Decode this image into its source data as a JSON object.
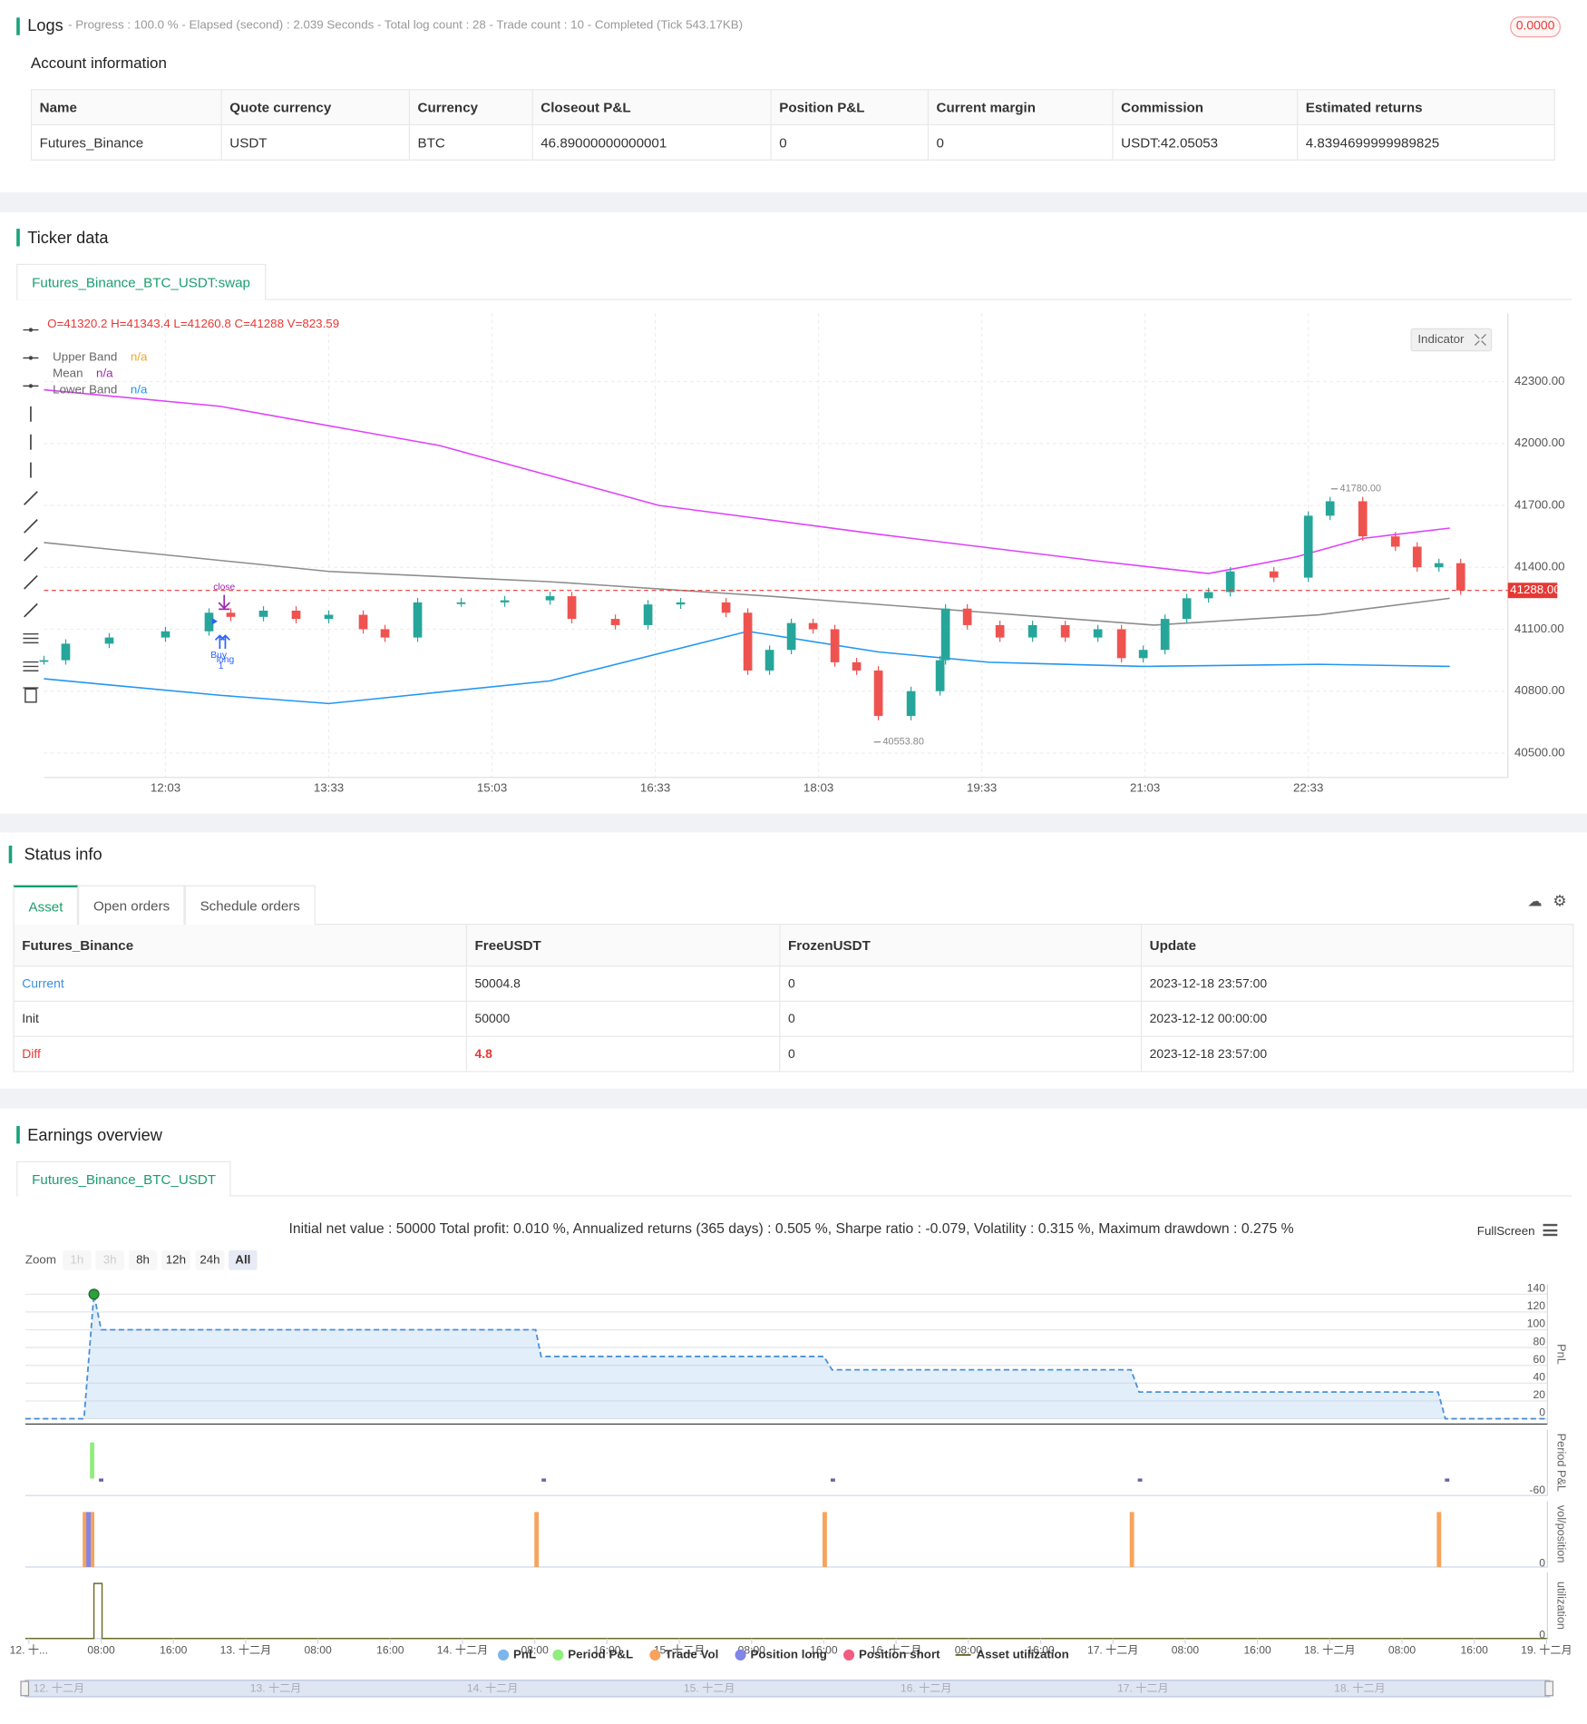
{
  "logs": {
    "title": "Logs",
    "progress": "- Progress : 100.0 % - Elapsed (second) : 2.039  Seconds - Total log count : 28 - Trade count : 10 - Completed (Tick 543.17KB)",
    "badge": "0.0000"
  },
  "account": {
    "title": "Account information",
    "columns": [
      "Name",
      "Quote currency",
      "Currency",
      "Closeout P&L",
      "Position P&L",
      "Current margin",
      "Commission",
      "Estimated returns"
    ],
    "rows": [
      [
        "Futures_Binance",
        "USDT",
        "BTC",
        "46.89000000000001",
        "0",
        "0",
        "USDT:42.05053",
        "4.8394699999989825"
      ]
    ]
  },
  "ticker": {
    "title": "Ticker data",
    "tab": "Futures_Binance_BTC_USDT:swap"
  },
  "status": {
    "title": "Status info",
    "tabs": [
      "Asset",
      "Open orders",
      "Schedule orders"
    ],
    "columns": [
      "Futures_Binance",
      "FreeUSDT",
      "FrozenUSDT",
      "Update"
    ],
    "rows": [
      [
        "Current",
        "50004.8",
        "0",
        "2023-12-18 23:57:00"
      ],
      [
        "Init",
        "50000",
        "0",
        "2023-12-12 00:00:00"
      ],
      [
        "Diff",
        "4.8",
        "0",
        "2023-12-18 23:57:00"
      ]
    ]
  },
  "earnings": {
    "title": "Earnings overview",
    "tab": "Futures_Binance_BTC_USDT",
    "fullscreen": "FullScreen",
    "zoom_label": "Zoom",
    "zoom_buttons": [
      "1h",
      "3h",
      "8h",
      "12h",
      "24h",
      "All"
    ]
  },
  "chart_data": [
    {
      "type": "candlestick",
      "ohlc": "O=41320.2 H=41343.4 L=41260.8 C=41288 V=823.59",
      "indicator_button": "Indicator",
      "up_color": "#26a69a",
      "down_color": "#ef5350",
      "x": [
        656,
        668,
        692,
        723,
        747,
        759,
        777,
        795,
        813,
        832,
        844,
        862,
        886,
        910,
        935,
        947,
        971,
        989,
        1007,
        1032,
        1044,
        1056,
        1068,
        1080,
        1092,
        1104,
        1116,
        1134,
        1150,
        1153,
        1165,
        1183,
        1201,
        1219,
        1237,
        1250,
        1262,
        1274,
        1286,
        1298,
        1310,
        1334,
        1353,
        1365,
        1383,
        1401,
        1413,
        1425,
        1437
      ],
      "close": [
        40950,
        41030,
        41060,
        41090,
        41180,
        41160,
        41190,
        41150,
        41170,
        41100,
        41060,
        41230,
        41230,
        41240,
        41260,
        41150,
        41120,
        41220,
        41230,
        41180,
        40900,
        41000,
        41130,
        41100,
        40940,
        40900,
        40680,
        40800,
        40950,
        41200,
        41120,
        41060,
        41120,
        41060,
        41100,
        40960,
        41000,
        41150,
        41250,
        41280,
        41380,
        41350,
        41650,
        41720,
        41550,
        41500,
        41400,
        41420,
        41288
      ],
      "series": [
        {
          "name": "Upper Band",
          "color": "#e040fb",
          "legend_value": "n/a",
          "value_color": "#f5a623",
          "x": [
            656,
            753,
            874,
            995,
            1116,
            1237,
            1298,
            1346,
            1383,
            1431
          ],
          "values": [
            42260,
            42180,
            41990,
            41700,
            41560,
            41430,
            41370,
            41450,
            41540,
            41590
          ]
        },
        {
          "name": "Mean",
          "color": "#8c8c8c",
          "legend_value": "n/a",
          "value_color": "#9c27b0",
          "x": [
            656,
            813,
            935,
            1056,
            1177,
            1268,
            1359,
            1431
          ],
          "values": [
            41520,
            41380,
            41330,
            41260,
            41180,
            41120,
            41170,
            41250
          ]
        },
        {
          "name": "Lower Band",
          "color": "#2196f3",
          "legend_value": "n/a",
          "value_color": "#2196f3",
          "x": [
            656,
            753,
            813,
            935,
            1044,
            1116,
            1177,
            1262,
            1359,
            1431
          ],
          "values": [
            40860,
            40780,
            40740,
            40850,
            41090,
            40990,
            40940,
            40920,
            40930,
            40920
          ]
        }
      ],
      "annotations": [
        "close",
        "Buy",
        "long",
        "1"
      ],
      "last_price": {
        "value": 41288,
        "label": "41288.00"
      },
      "high_marker": {
        "x": 1368,
        "value": 41780,
        "label": "41780.00"
      },
      "low_marker": {
        "x": 1116,
        "value": 40553.8,
        "label": "40553.80"
      },
      "xlim": [
        656,
        1463
      ],
      "xticks": [
        {
          "value": 723,
          "label": "12:03"
        },
        {
          "value": 813,
          "label": "13:33"
        },
        {
          "value": 903,
          "label": "15:03"
        },
        {
          "value": 993,
          "label": "16:33"
        },
        {
          "value": 1083,
          "label": "18:03"
        },
        {
          "value": 1173,
          "label": "19:33"
        },
        {
          "value": 1263,
          "label": "21:03"
        },
        {
          "value": 1353,
          "label": "22:33"
        }
      ],
      "ylim": [
        40382,
        42630
      ],
      "yticks": [
        {
          "value": 40500,
          "label": "40500.00"
        },
        {
          "value": 40800,
          "label": "40800.00"
        },
        {
          "value": 41100,
          "label": "41100.00"
        },
        {
          "value": 41400,
          "label": "41400.00"
        },
        {
          "value": 41700,
          "label": "41700.00"
        },
        {
          "value": 42000,
          "label": "42000.00"
        },
        {
          "value": 42300,
          "label": "42300.00"
        }
      ],
      "grid": true
    },
    {
      "type": "line",
      "title": "Initial net value : 50000 Total profit: 0.010 %, Annualized returns (365 days) : 0.505 %, Sharpe ratio : -0.079, Volatility : 0.315 %, Maximum drawdown : 0.275 %",
      "xlim": [
        -0.4,
        168.1
      ],
      "xticks": [
        {
          "value": 0,
          "label": "12. 十..."
        },
        {
          "value": 8,
          "label": "08:00"
        },
        {
          "value": 16,
          "label": "16:00"
        },
        {
          "value": 24,
          "label": "13. 十二月"
        },
        {
          "value": 32,
          "label": "08:00"
        },
        {
          "value": 40,
          "label": "16:00"
        },
        {
          "value": 48,
          "label": "14. 十二月"
        },
        {
          "value": 56,
          "label": "08:00"
        },
        {
          "value": 64,
          "label": "16:00"
        },
        {
          "value": 72,
          "label": "15. 十二月"
        },
        {
          "value": 80,
          "label": "08:00"
        },
        {
          "value": 88,
          "label": "16:00"
        },
        {
          "value": 96,
          "label": "16. 十二月"
        },
        {
          "value": 104,
          "label": "08:00"
        },
        {
          "value": 112,
          "label": "16:00"
        },
        {
          "value": 120,
          "label": "17. 十二月"
        },
        {
          "value": 128,
          "label": "08:00"
        },
        {
          "value": 136,
          "label": "16:00"
        },
        {
          "value": 144,
          "label": "18. 十二月"
        },
        {
          "value": 152,
          "label": "08:00"
        },
        {
          "value": 160,
          "label": "16:00"
        },
        {
          "value": 168,
          "label": "19. 十二月"
        }
      ],
      "navigator": [
        {
          "value": 0,
          "label": "12. 十二月"
        },
        {
          "value": 24,
          "label": "13. 十二月"
        },
        {
          "value": 48,
          "label": "14. 十二月"
        },
        {
          "value": 72,
          "label": "15. 十二月"
        },
        {
          "value": 96,
          "label": "16. 十二月"
        },
        {
          "value": 120,
          "label": "17. 十二月"
        },
        {
          "value": 144,
          "label": "18. 十二月"
        }
      ],
      "panels": [
        {
          "label": "PnL",
          "ylim": [
            -6,
            151
          ],
          "yticks": [
            0,
            20,
            40,
            60,
            80,
            100,
            120,
            140
          ]
        },
        {
          "label": "Period P&L",
          "ylim": [
            -66,
            190
          ],
          "yticks": [
            -60
          ]
        },
        {
          "label": "vol/position",
          "ylim": [
            0,
            1.2
          ],
          "yticks": [
            0
          ]
        },
        {
          "label": "utilization",
          "ylim": [
            0,
            1.2
          ],
          "yticks": [
            0
          ]
        }
      ],
      "series": [
        {
          "name": "PnL",
          "color": "#7cb5ec",
          "style": "area",
          "panel": 0,
          "x": [
            -0.4,
            6.1,
            7.2,
            8,
            56.1,
            56.7,
            88,
            88.9,
            122,
            122.9,
            156,
            156.8,
            168.1
          ],
          "values": [
            0,
            0,
            140,
            100,
            100,
            70,
            70,
            55,
            55,
            30,
            30,
            0,
            0
          ]
        },
        {
          "name": "Period P&L",
          "color": "#90ed7d",
          "negative_color": "#6e5fa5",
          "style": "column",
          "panel": 1,
          "x": [
            7,
            8,
            57,
            89,
            123,
            157
          ],
          "values": [
            140,
            -12,
            -12,
            -12,
            -12,
            -12
          ]
        },
        {
          "name": "Trade Vol",
          "color": "#f7a35c",
          "style": "column",
          "panel": 2,
          "x": [
            6.2,
            7,
            56.2,
            88.1,
            122.1,
            156.1
          ],
          "values": [
            1,
            1,
            1,
            1,
            1,
            1
          ]
        },
        {
          "name": "Position long",
          "color": "#8085e9",
          "style": "column",
          "panel": 2,
          "x": [
            6.6
          ],
          "values": [
            1
          ]
        },
        {
          "name": "Position short",
          "color": "#f15c80",
          "style": "column",
          "panel": 2,
          "x": [],
          "values": []
        },
        {
          "name": "Asset utilization",
          "color": "#6b6b2a",
          "style": "line",
          "panel": 3,
          "x": [
            -0.4,
            7.2,
            7.2,
            8.1,
            8.1,
            168.1
          ],
          "values": [
            0,
            0,
            1,
            1,
            0,
            0
          ]
        }
      ]
    }
  ]
}
